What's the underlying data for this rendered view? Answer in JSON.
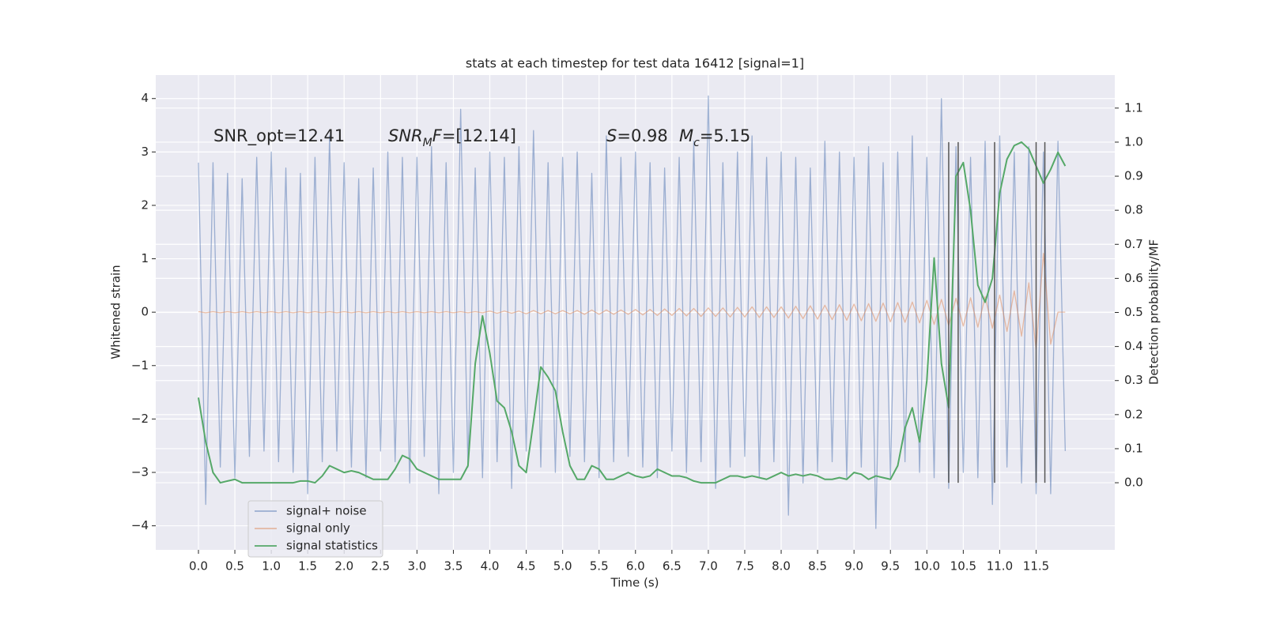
{
  "chart_data": {
    "type": "line",
    "title": "stats at each timestep for test data 16412 [signal=1]",
    "xlabel": "Time (s)",
    "ylabel": "Whitened strain",
    "y2label": "Detection probability/MF",
    "xlim": [
      -0.586,
      12.58
    ],
    "ylim": [
      -4.45,
      4.44
    ],
    "y2lim": [
      -0.197,
      1.197
    ],
    "xticks": [
      {
        "value": 0,
        "label": "0.0"
      },
      0.5,
      {
        "value": 1,
        "label": "1.0"
      },
      1.5,
      {
        "value": 2,
        "label": "2.0"
      },
      2.5,
      {
        "value": 3,
        "label": "3.0"
      },
      3.5,
      {
        "value": 4,
        "label": "4.0"
      },
      4.5,
      {
        "value": 5,
        "label": "5.0"
      },
      5.5,
      {
        "value": 6,
        "label": "6.0"
      },
      6.5,
      {
        "value": 7,
        "label": "7.0"
      },
      7.5,
      {
        "value": 8,
        "label": "8.0"
      },
      8.5,
      {
        "value": 9,
        "label": "9.0"
      },
      9.5,
      {
        "value": 10,
        "label": "10.0"
      },
      10.5,
      {
        "value": 11,
        "label": "11.0"
      },
      11.5
    ],
    "yticks": [
      {
        "value": -4,
        "label": "−4"
      },
      {
        "value": -3,
        "label": "−3"
      },
      {
        "value": -2,
        "label": "−2"
      },
      {
        "value": -1,
        "label": "−1"
      },
      0,
      1,
      2,
      3,
      4
    ],
    "y2ticks": [
      {
        "value": 0,
        "label": "0.0"
      },
      0.1,
      0.2,
      0.3,
      0.4,
      0.5,
      0.6,
      0.7,
      0.8,
      0.9,
      {
        "value": 1,
        "label": "1.0"
      },
      1.1
    ],
    "grid": true,
    "legend": "lower left",
    "annotations": [
      {
        "parts": [
          {
            "text": "SNR_opt=12.41"
          }
        ]
      },
      {
        "parts": [
          {
            "text": "SNR",
            "italic": true
          },
          {
            "text": "M",
            "italic": true,
            "sub": true
          },
          {
            "text": "F",
            "italic": true
          },
          {
            "text": "=[12.14]"
          }
        ]
      },
      {
        "parts": [
          {
            "text": "S",
            "italic": true
          },
          {
            "text": "=0.98"
          }
        ]
      },
      {
        "parts": [
          {
            "text": "M",
            "italic": true
          },
          {
            "text": "c",
            "italic": true,
            "sub": true
          },
          {
            "text": "=5.15"
          }
        ]
      }
    ],
    "vlines": {
      "x": [
        10.3,
        10.43,
        10.93,
        11.5,
        11.62
      ],
      "ymin": 0,
      "ymax": 1,
      "axis": "y2",
      "color": "#555555"
    },
    "x": [
      0,
      0.1,
      0.2,
      0.3,
      0.4,
      0.5,
      0.6,
      0.7,
      0.8,
      0.9,
      1,
      1.1,
      1.2,
      1.3,
      1.4,
      1.5,
      1.6,
      1.7,
      1.8,
      1.9,
      2,
      2.1,
      2.2,
      2.3,
      2.4,
      2.5,
      2.6,
      2.7,
      2.8,
      2.9,
      3,
      3.1,
      3.2,
      3.3,
      3.4,
      3.5,
      3.6,
      3.7,
      3.8,
      3.9,
      4,
      4.1,
      4.2,
      4.3,
      4.4,
      4.5,
      4.6,
      4.7,
      4.8,
      4.9,
      5,
      5.1,
      5.2,
      5.3,
      5.4,
      5.5,
      5.6,
      5.7,
      5.8,
      5.9,
      6,
      6.1,
      6.2,
      6.3,
      6.4,
      6.5,
      6.6,
      6.7,
      6.8,
      6.9,
      7,
      7.1,
      7.2,
      7.3,
      7.4,
      7.5,
      7.6,
      7.7,
      7.8,
      7.9,
      8,
      8.1,
      8.2,
      8.3,
      8.4,
      8.5,
      8.6,
      8.7,
      8.8,
      8.9,
      9,
      9.1,
      9.2,
      9.3,
      9.4,
      9.5,
      9.6,
      9.7,
      9.8,
      9.9,
      10,
      10.1,
      10.2,
      10.3,
      10.4,
      10.5,
      10.6,
      10.7,
      10.8,
      10.9,
      11,
      11.1,
      11.2,
      11.3,
      11.4,
      11.5,
      11.6,
      11.7,
      11.8,
      11.9
    ],
    "series": [
      {
        "name": "signal+ noise",
        "color": "#4c72b0",
        "alpha": 0.5,
        "values": [
          2.8,
          -3.6,
          2.8,
          -2.9,
          2.6,
          -3.1,
          2.5,
          -2.7,
          2.9,
          -2.6,
          3.0,
          -2.8,
          2.7,
          -3.0,
          2.6,
          -3.4,
          2.9,
          -2.8,
          3.3,
          -2.6,
          2.8,
          -2.9,
          2.5,
          -3.1,
          2.7,
          -2.6,
          3.0,
          -2.8,
          2.9,
          -3.2,
          2.9,
          -2.7,
          3.1,
          -3.4,
          2.8,
          -3.0,
          3.8,
          -2.9,
          2.7,
          -3.1,
          3.0,
          -2.8,
          2.9,
          -3.3,
          3.1,
          -2.6,
          3.4,
          -2.9,
          2.8,
          -3.0,
          2.9,
          -2.7,
          3.0,
          -2.8,
          2.6,
          -3.1,
          3.3,
          -2.8,
          2.9,
          -2.7,
          3.0,
          -2.9,
          2.8,
          -3.1,
          2.7,
          -2.6,
          2.9,
          -3.0,
          3.2,
          -2.8,
          4.05,
          -3.3,
          2.8,
          -2.9,
          3.0,
          -2.7,
          3.3,
          -3.1,
          2.9,
          -2.8,
          3.0,
          -3.8,
          2.9,
          -3.2,
          2.7,
          -3.0,
          3.2,
          -2.8,
          3.0,
          -3.1,
          2.9,
          -2.9,
          3.1,
          -4.05,
          2.8,
          -3.1,
          3.0,
          -2.8,
          3.3,
          -3.0,
          2.9,
          -3.1,
          4.0,
          -3.3,
          3.1,
          -3.0,
          2.9,
          -3.1,
          3.2,
          -3.6,
          3.3,
          -2.9,
          3.0,
          -3.2,
          3.1,
          -3.4,
          3.0,
          -3.4,
          3.2,
          -2.6
        ]
      },
      {
        "name": "signal only",
        "color": "#dd8452",
        "alpha": 0.5,
        "values": [
          0.01,
          -0.01,
          0.01,
          -0.01,
          0.01,
          -0.01,
          0.01,
          -0.01,
          0.01,
          -0.01,
          0.01,
          -0.01,
          0.01,
          -0.01,
          0.01,
          -0.01,
          0.01,
          -0.01,
          0.01,
          -0.01,
          0.01,
          -0.01,
          0.01,
          -0.01,
          0.01,
          -0.01,
          0.01,
          -0.01,
          0.01,
          -0.01,
          0.01,
          -0.01,
          0.01,
          -0.01,
          0.01,
          -0.01,
          0.01,
          -0.01,
          0.01,
          -0.01,
          0.02,
          -0.02,
          0.02,
          -0.02,
          0.02,
          -0.03,
          0.03,
          -0.03,
          0.03,
          -0.03,
          0.03,
          -0.03,
          0.03,
          -0.04,
          0.04,
          -0.04,
          0.04,
          -0.04,
          0.04,
          -0.04,
          0.05,
          -0.05,
          0.05,
          -0.06,
          0.06,
          -0.06,
          0.07,
          -0.07,
          0.07,
          -0.08,
          0.08,
          -0.08,
          0.08,
          -0.09,
          0.09,
          -0.09,
          0.1,
          -0.1,
          0.1,
          -0.1,
          0.1,
          -0.11,
          0.11,
          -0.12,
          0.12,
          -0.13,
          0.13,
          -0.14,
          0.14,
          -0.15,
          0.15,
          -0.16,
          0.16,
          -0.17,
          0.17,
          -0.18,
          0.18,
          -0.19,
          0.19,
          -0.2,
          0.22,
          -0.23,
          0.24,
          -0.25,
          0.26,
          -0.26,
          0.27,
          -0.28,
          0.29,
          -0.3,
          0.32,
          -0.36,
          0.4,
          -0.45,
          0.55,
          -0.7,
          1.1,
          -0.6,
          0,
          0
        ]
      },
      {
        "name": "signal statistics",
        "color": "#55a868",
        "axis": "y2",
        "values": [
          0.25,
          0.12,
          0.03,
          0.0,
          0.005,
          0.01,
          0.0,
          0.0,
          0.0,
          0.0,
          0.0,
          0.0,
          0.0,
          0.0,
          0.005,
          0.005,
          0.0,
          0.02,
          0.05,
          0.04,
          0.03,
          0.035,
          0.03,
          0.02,
          0.01,
          0.01,
          0.01,
          0.04,
          0.08,
          0.07,
          0.04,
          0.03,
          0.02,
          0.01,
          0.01,
          0.01,
          0.01,
          0.05,
          0.35,
          0.49,
          0.38,
          0.24,
          0.22,
          0.15,
          0.05,
          0.03,
          0.18,
          0.34,
          0.31,
          0.27,
          0.15,
          0.05,
          0.01,
          0.01,
          0.05,
          0.04,
          0.01,
          0.01,
          0.02,
          0.03,
          0.02,
          0.015,
          0.02,
          0.04,
          0.03,
          0.02,
          0.02,
          0.015,
          0.005,
          0.0,
          0.0,
          0.0,
          0.01,
          0.02,
          0.02,
          0.015,
          0.02,
          0.015,
          0.01,
          0.02,
          0.03,
          0.02,
          0.025,
          0.02,
          0.025,
          0.02,
          0.01,
          0.01,
          0.015,
          0.01,
          0.03,
          0.025,
          0.01,
          0.02,
          0.015,
          0.01,
          0.05,
          0.16,
          0.22,
          0.12,
          0.3,
          0.66,
          0.35,
          0.22,
          0.9,
          0.94,
          0.8,
          0.58,
          0.53,
          0.6,
          0.85,
          0.95,
          0.99,
          1.0,
          0.98,
          0.93,
          0.88,
          0.92,
          0.97,
          0.93
        ]
      }
    ]
  }
}
